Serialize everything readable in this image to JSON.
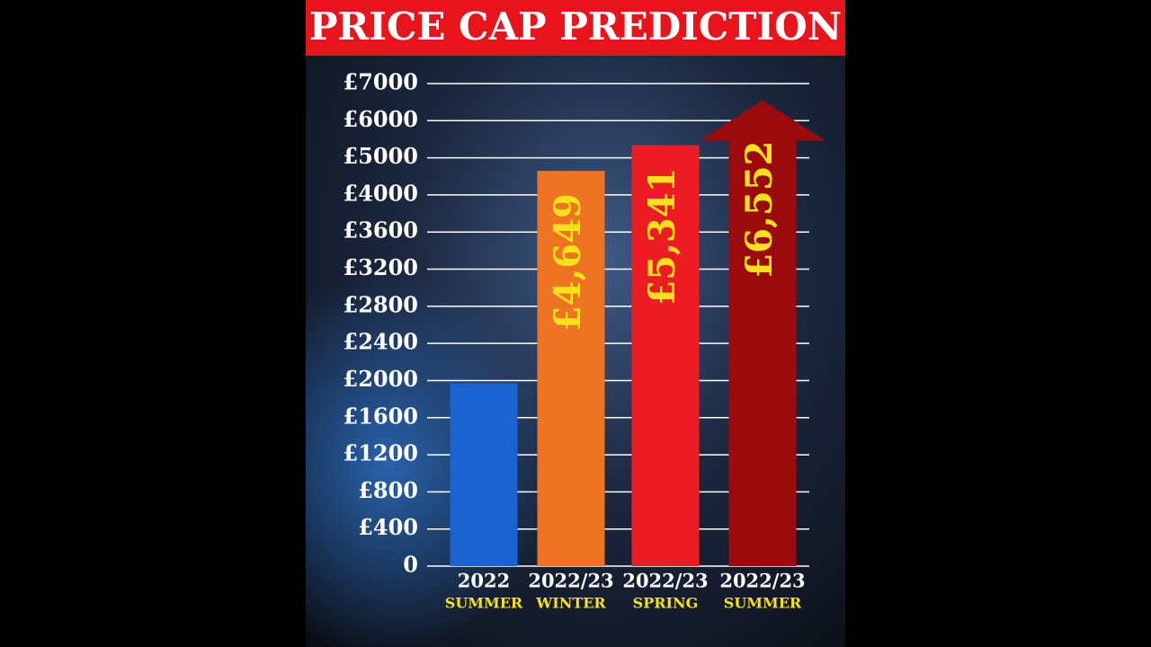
{
  "chart_data": {
    "type": "bar",
    "title": "PRICE CAP PREDICTION",
    "categories": [
      "2022",
      "2022/23",
      "2022/23",
      "2022/23"
    ],
    "category_sublabels": [
      "SUMMER",
      "WINTER",
      "SPRING",
      "SUMMER"
    ],
    "values": [
      1971,
      4649,
      5341,
      6552
    ],
    "value_labels": [
      null,
      "£4,649",
      "£5,341",
      "£6,552"
    ],
    "colors": [
      "#1a63d0",
      "#ee7322",
      "#ec1c24",
      "#9b0a0c"
    ],
    "arrow_on_last": true,
    "ylim": [
      0,
      7000
    ],
    "yticks": [
      0,
      {
        "value": 400,
        "label": "£400"
      },
      {
        "value": 800,
        "label": "£800"
      },
      {
        "value": 1200,
        "label": "£1200"
      },
      {
        "value": 1600,
        "label": "£1600"
      },
      {
        "value": 2000,
        "label": "£2000"
      },
      {
        "value": 2400,
        "label": "£2400"
      },
      {
        "value": 2800,
        "label": "£2800"
      },
      {
        "value": 3200,
        "label": "£3200"
      },
      {
        "value": 3600,
        "label": "£3600"
      },
      {
        "value": 4000,
        "label": "£4000"
      },
      {
        "value": 5000,
        "label": "£5000"
      },
      {
        "value": 6000,
        "label": "£6000"
      },
      {
        "value": 7000,
        "label": "£7000"
      }
    ],
    "grid": true
  }
}
